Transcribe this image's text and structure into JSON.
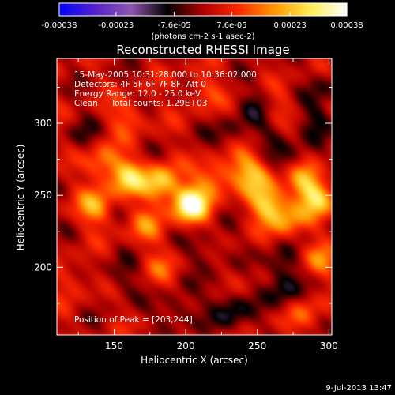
{
  "chart_data": {
    "type": "heatmap",
    "title": "Reconstructed RHESSI Image",
    "xlabel": "Heliocentric X (arcsec)",
    "ylabel": "Heliocentric Y (arcsec)",
    "xlim": [
      110,
      302
    ],
    "ylim": [
      153,
      345
    ],
    "x_ticks": [
      150,
      200,
      250,
      300
    ],
    "y_ticks": [
      200,
      250,
      300
    ],
    "annotations": [
      "15-May-2005 10:31:28.000 to 10:36:02.000",
      "Detectors: 4F 5F 6F 7F 8F, Att 0",
      "Energy Range: 12.0 - 25.0 keV",
      "Clean     Total counts: 1.29E+03"
    ],
    "peak_label": "Position of Peak = [203,244]",
    "peak": {
      "x": 203,
      "y": 244
    },
    "colorbar": {
      "min": -0.00038,
      "max": 0.00038,
      "tick_labels": [
        "-0.00038",
        "-0.00023",
        "-7.6e-05",
        "7.6e-05",
        "0.00023",
        "0.00038"
      ],
      "unit_label": "(photons cm-2 s-1 asec-2)"
    },
    "sources": [
      {
        "x": 203,
        "y": 244,
        "value": 0.00038
      },
      {
        "x": 183,
        "y": 258,
        "value": 0.00026
      },
      {
        "x": 160,
        "y": 262,
        "value": 0.00022
      },
      {
        "x": 137,
        "y": 242,
        "value": 0.00018
      },
      {
        "x": 142,
        "y": 273,
        "value": 0.00016
      },
      {
        "x": 220,
        "y": 262,
        "value": 0.00016
      },
      {
        "x": 258,
        "y": 244,
        "value": 0.00024
      },
      {
        "x": 292,
        "y": 248,
        "value": 0.00022
      },
      {
        "x": 282,
        "y": 262,
        "value": 0.00018
      },
      {
        "x": 272,
        "y": 232,
        "value": 0.00015
      },
      {
        "x": 172,
        "y": 228,
        "value": 0.00012
      },
      {
        "x": 292,
        "y": 204,
        "value": 0.00013
      },
      {
        "x": 284,
        "y": 168,
        "value": 0.0001
      },
      {
        "x": 160,
        "y": 305,
        "value": 0.00011
      },
      {
        "x": 212,
        "y": 322,
        "value": 9e-05
      },
      {
        "x": 262,
        "y": 310,
        "value": 0.0001
      },
      {
        "x": 182,
        "y": 198,
        "value": 8e-05
      },
      {
        "x": 232,
        "y": 188,
        "value": 7e-05
      },
      {
        "x": 122,
        "y": 192,
        "value": 7e-05
      },
      {
        "x": 250,
        "y": 262,
        "value": 0.00014
      },
      {
        "x": 242,
        "y": 272,
        "value": 0.00012
      },
      {
        "x": 226,
        "y": 185,
        "value": -9e-05
      },
      {
        "x": 268,
        "y": 183,
        "value": -0.00012
      },
      {
        "x": 232,
        "y": 168,
        "value": -0.00013
      },
      {
        "x": 192,
        "y": 170,
        "value": -0.0001
      },
      {
        "x": 155,
        "y": 193,
        "value": -8e-05
      },
      {
        "x": 252,
        "y": 312,
        "value": -0.00011
      },
      {
        "x": 230,
        "y": 292,
        "value": -8e-05
      },
      {
        "x": 262,
        "y": 292,
        "value": -9e-05
      },
      {
        "x": 292,
        "y": 302,
        "value": -0.0001
      },
      {
        "x": 274,
        "y": 272,
        "value": -0.0001
      },
      {
        "x": 214,
        "y": 212,
        "value": -8e-05
      },
      {
        "x": 267,
        "y": 202,
        "value": -0.00011
      },
      {
        "x": 128,
        "y": 290,
        "value": -6e-05
      },
      {
        "x": 298,
        "y": 325,
        "value": -7e-05
      },
      {
        "x": 196,
        "y": 252,
        "value": -5e-05
      }
    ]
  },
  "colors": {
    "background": "#000000",
    "foreground": "#ffffff",
    "colortable": [
      "#0000ff",
      "#5522cc",
      "#9055b0",
      "#000000",
      "#b00000",
      "#ff2800",
      "#ff9a00",
      "#ffee55",
      "#ffffff"
    ]
  },
  "footer": {
    "timestamp": "9-Jul-2013 13:47"
  }
}
